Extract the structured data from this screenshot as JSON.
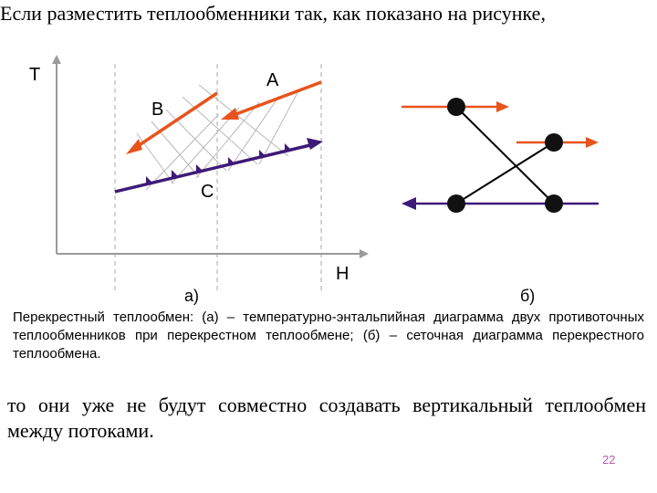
{
  "slide": {
    "intro_text": "Если разместить теплообменники так, как показано на рисунке,",
    "caption": "Перекрестный теплообмен: (а) – температурно-энтальпийная диаграмма двух противоточных теплообменников при перекрестном теплообмене; (б) – сеточная диаграмма перекрестного теплообмена.",
    "conclusion_text": "то они уже не будут совместно создавать вертикальный теплообмен между потоками.",
    "page_number": "22"
  },
  "diagram_a": {
    "axis_y_label": "T",
    "axis_x_label": "H",
    "stream_labels": [
      "A",
      "B",
      "C"
    ],
    "panel_label": "а)"
  },
  "diagram_b": {
    "panel_label": "б)"
  },
  "colors": {
    "hot_stream": "#e8531d",
    "cold_stream": "#3d1a78",
    "axes": "#9a9a9a",
    "hatch": "#b8b8b8",
    "page_number": "#c05ab0"
  }
}
